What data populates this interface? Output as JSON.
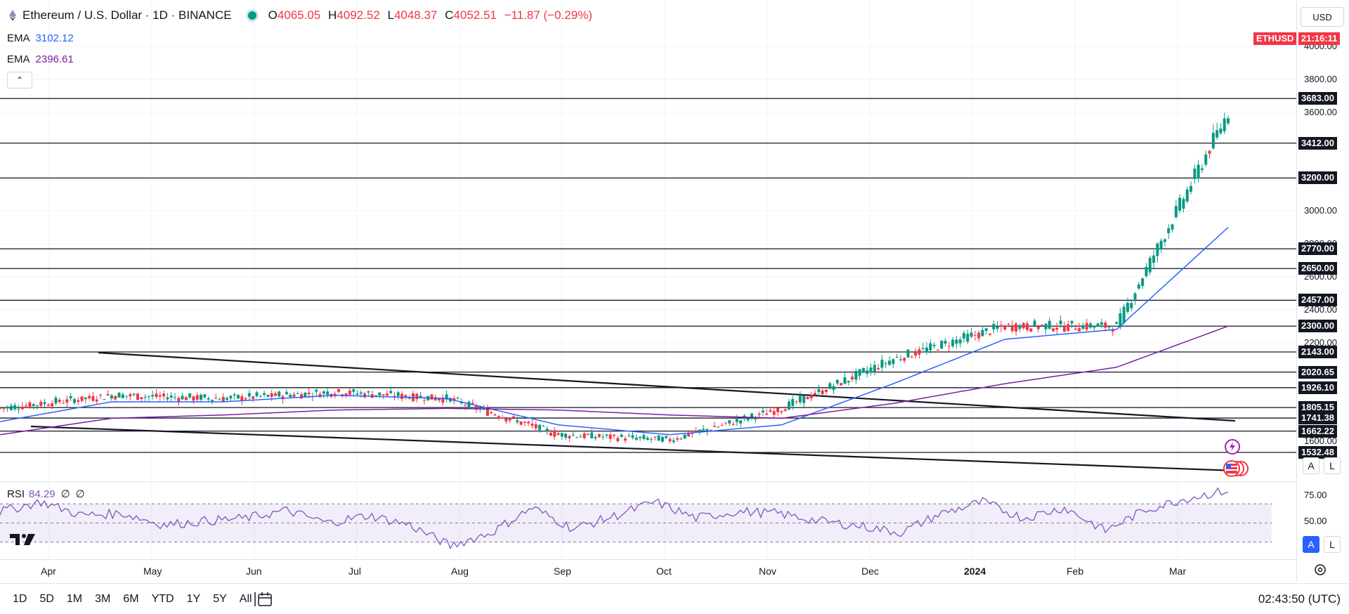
{
  "legend": {
    "title": "Ethereum / U.S. Dollar · 1D · BINANCE",
    "ohlc": [
      {
        "k": "O",
        "v": "4065.05"
      },
      {
        "k": "H",
        "v": "4092.52"
      },
      {
        "k": "L",
        "v": "4048.37"
      },
      {
        "k": "C",
        "v": "4052.51"
      }
    ],
    "change": "−11.87 (−0.29%)"
  },
  "ema1": {
    "label": "EMA",
    "value": "3102.12",
    "color": "#2962ff"
  },
  "ema2": {
    "label": "EMA",
    "value": "2396.61",
    "color": "#7b1fa2"
  },
  "collapse_icon": "chevron-up-icon",
  "currency": "USD",
  "symbol_tag": "ETHUSD",
  "countdown": "21:16:11",
  "price_ticks": [
    "4000.00",
    "3800.00",
    "3600.00",
    "3000.00",
    "2800.00",
    "2600.00",
    "2400.00",
    "2200.00",
    "1600.00"
  ],
  "level_tags": [
    "3683.00",
    "3412.00",
    "3200.00",
    "2770.00",
    "2650.00",
    "2457.00",
    "2300.00",
    "2143.00",
    "2020.65",
    "1926.10",
    "1805.15",
    "1741.38",
    "1662.22",
    "1532.48"
  ],
  "scale_buttons": {
    "auto": "A",
    "log": "L"
  },
  "rsi": {
    "label": "RSI",
    "value": "84.29",
    "extra1": "∅",
    "extra2": "∅",
    "ticks": [
      "75.00",
      "50.00"
    ]
  },
  "time_labels": [
    "Apr",
    "May",
    "Jun",
    "Jul",
    "Aug",
    "Sep",
    "Oct",
    "Nov",
    "Dec",
    "2024",
    "Feb",
    "Mar"
  ],
  "ranges": [
    "1D",
    "5D",
    "1M",
    "3M",
    "6M",
    "YTD",
    "1Y",
    "5Y",
    "All"
  ],
  "clock": "02:43:50 (UTC)",
  "colors": {
    "up": "#089981",
    "down": "#f23645",
    "rsi": "#7e57c2",
    "ema_fast": "#2962ff",
    "ema_slow": "#7b1fa2"
  },
  "chart_data": {
    "type": "line",
    "title": "Ethereum / U.S. Dollar · 1D · BINANCE",
    "x": [
      "Apr",
      "May",
      "Jun",
      "Jul",
      "Aug",
      "Sep",
      "Oct",
      "Nov",
      "Dec",
      "2024",
      "Feb",
      "Mar"
    ],
    "series": [
      {
        "name": "ETHUSD",
        "values": [
          1800,
          1880,
          1860,
          1900,
          1860,
          1640,
          1610,
          1800,
          2100,
          2300,
          2300,
          3600
        ]
      },
      {
        "name": "EMA 3102.12",
        "values": [
          1720,
          1840,
          1840,
          1880,
          1860,
          1700,
          1640,
          1700,
          1950,
          2220,
          2280,
          2900
        ]
      },
      {
        "name": "EMA 2396.61",
        "values": [
          1640,
          1740,
          1760,
          1790,
          1800,
          1790,
          1760,
          1740,
          1830,
          1950,
          2050,
          2300
        ]
      }
    ],
    "levels": [
      3683.0,
      3412.0,
      3200.0,
      2770.0,
      2650.0,
      2457.0,
      2300.0,
      2143.0,
      2020.65,
      1926.1,
      1805.15,
      1741.38,
      1662.22,
      1532.48
    ],
    "ylim": [
      1500,
      4150
    ],
    "rsi_series": [
      62,
      72,
      58,
      60,
      48,
      52,
      55,
      63,
      50,
      58,
      48,
      26,
      40,
      66,
      44,
      57,
      72,
      55,
      62,
      60,
      52,
      47,
      40,
      60,
      72,
      55,
      66,
      42,
      64,
      76,
      84
    ],
    "rsi_ylim": [
      15,
      90
    ]
  }
}
